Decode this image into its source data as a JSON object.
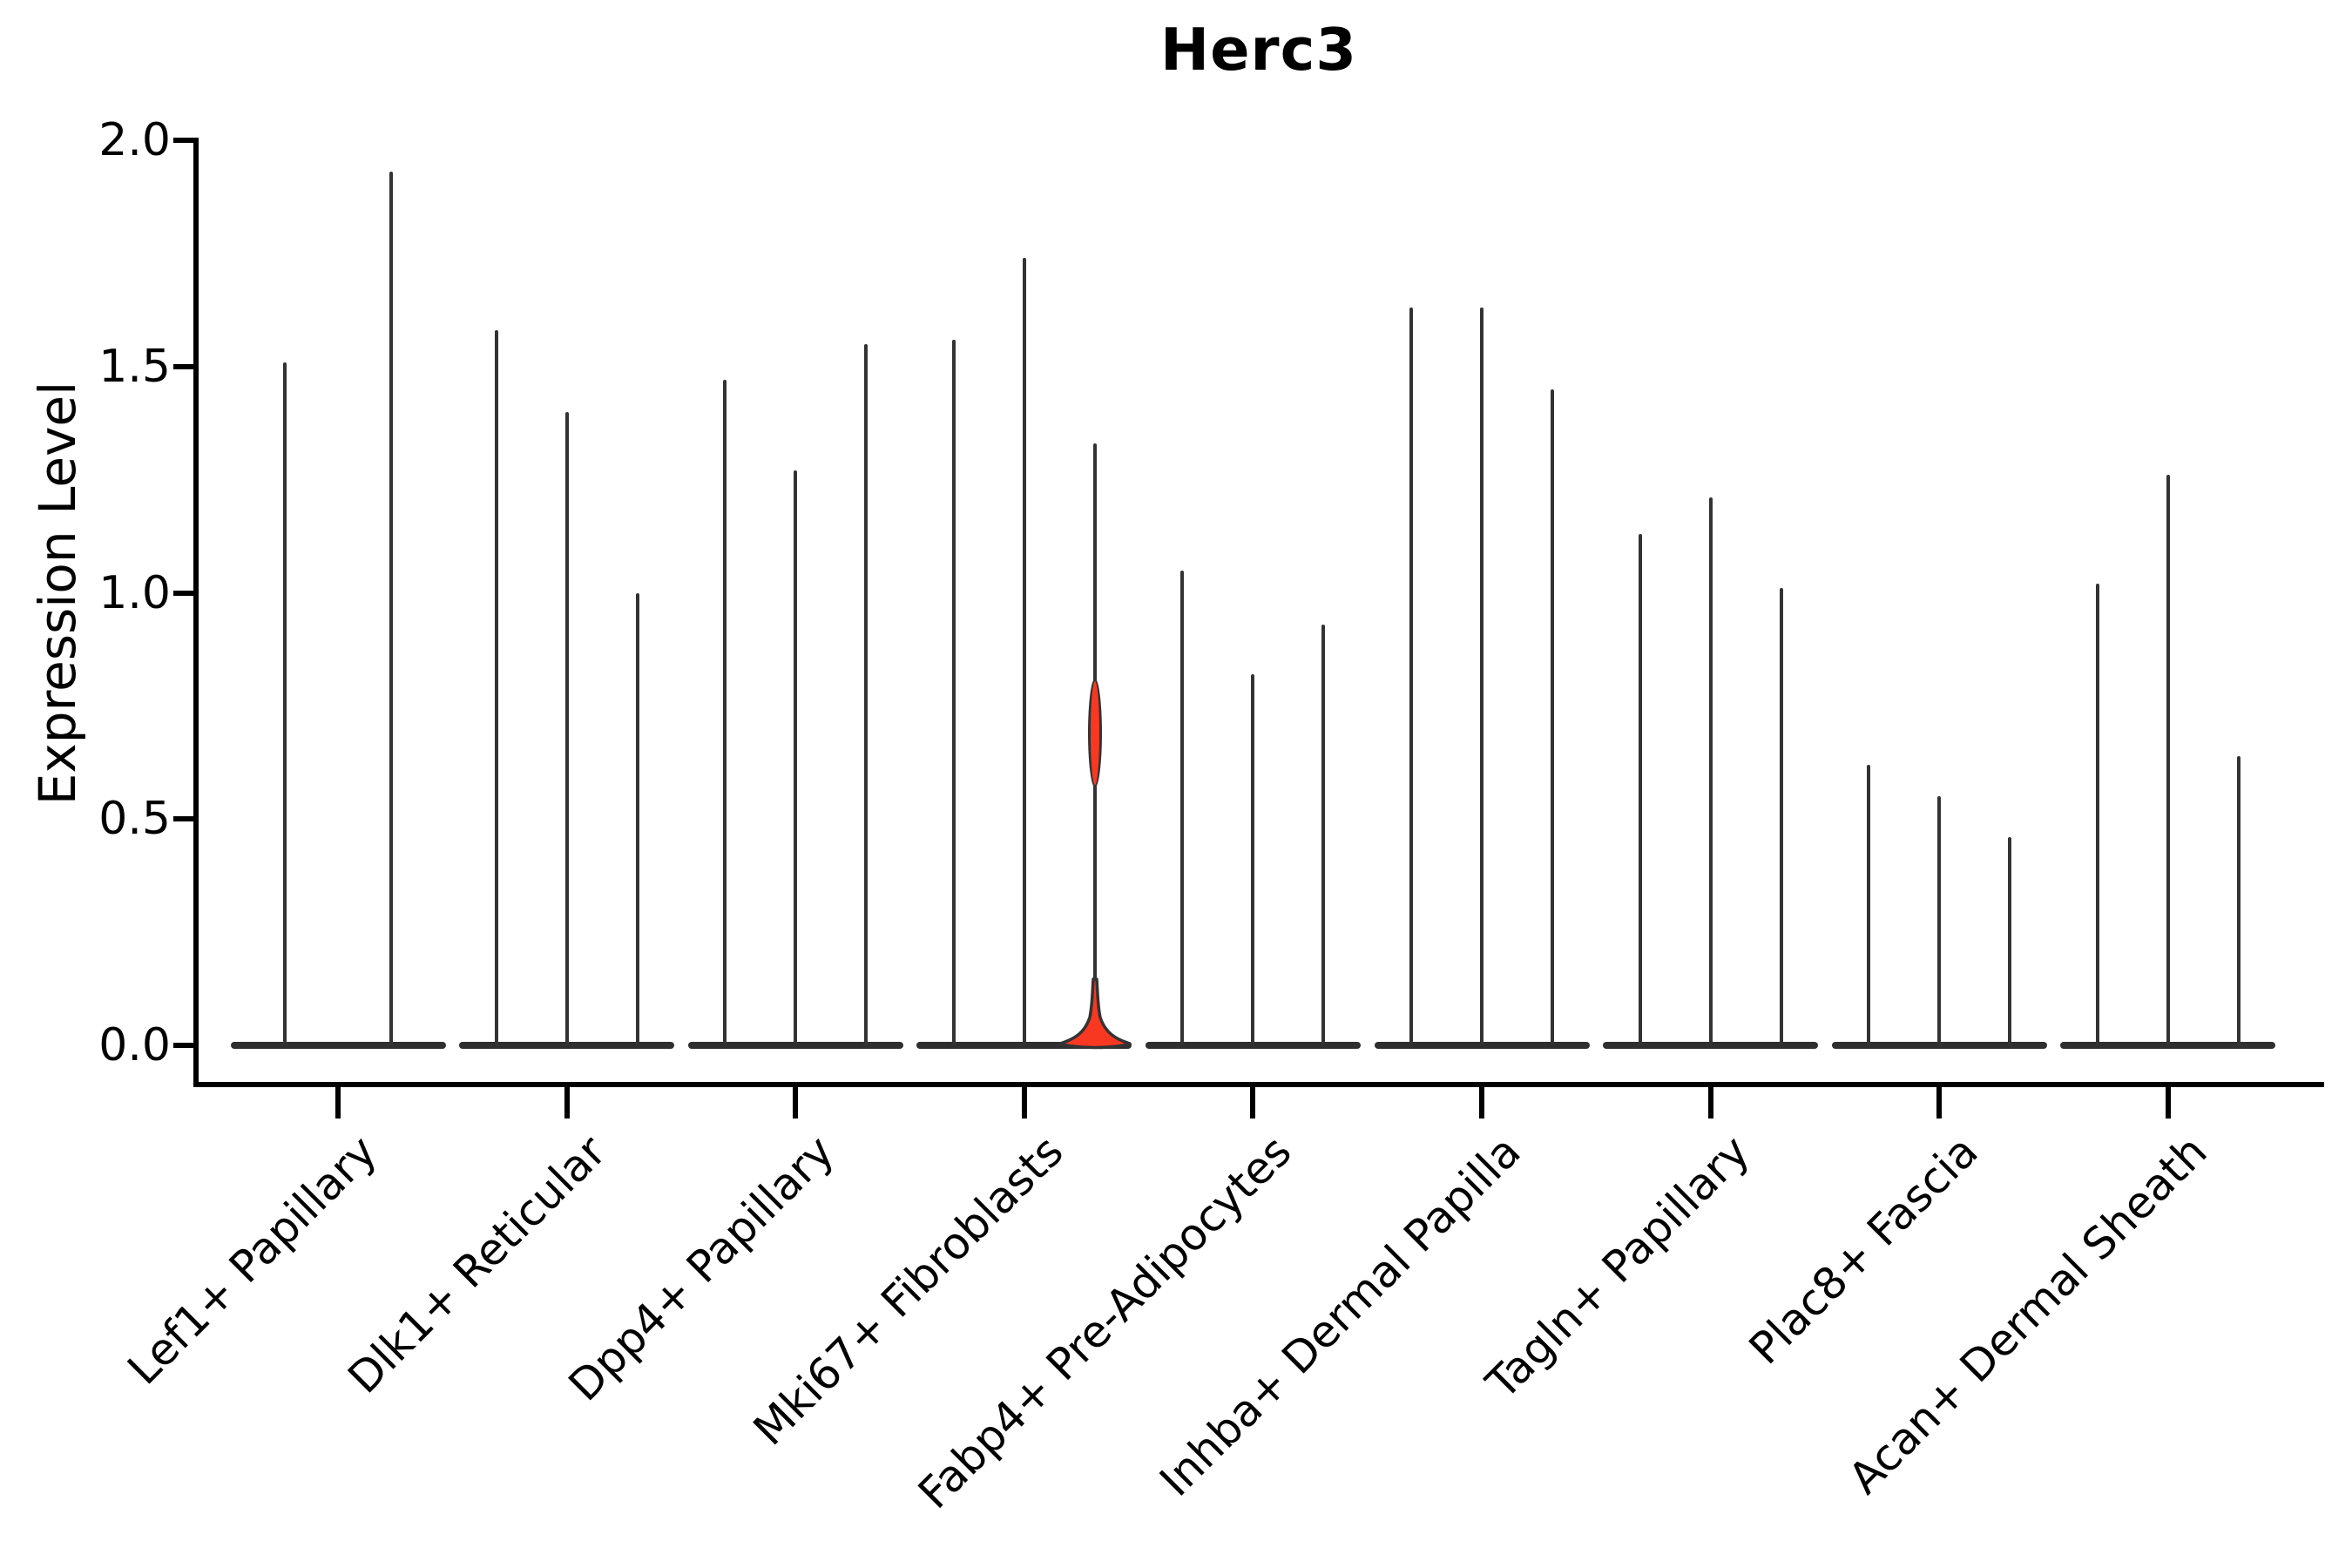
{
  "title": "Herc3",
  "y_axis": {
    "label": "Expression Level",
    "ticks": [
      "2.0",
      "1.5",
      "1.0",
      "0.5",
      "0.0"
    ],
    "tick_values": [
      2.0,
      1.5,
      1.0,
      0.5,
      0.0
    ]
  },
  "x_axis": {
    "categories": [
      "Lef1+ Papillary",
      "Dlk1+ Reticular",
      "Dpp4+ Papillary",
      "Mki67+ Fibroblasts",
      "Fabp4+ Pre-Adipocytes",
      "Inhba+ Dermal Papilla",
      "Tagln+ Papillary",
      "Plac8+ Fascia",
      "Acan+ Dermal Sheath"
    ]
  },
  "chart_data": {
    "type": "violin",
    "title": "Herc3",
    "xlabel": "",
    "ylabel": "Expression Level",
    "ylim": [
      0.0,
      2.0
    ],
    "yticks": [
      0.0,
      0.5,
      1.0,
      1.5,
      2.0
    ],
    "grid": false,
    "legend": "none",
    "categories": [
      "Lef1+ Papillary",
      "Dlk1+ Reticular",
      "Dpp4+ Papillary",
      "Mki67+ Fibroblasts",
      "Fabp4+ Pre-Adipocytes",
      "Inhba+ Dermal Papilla",
      "Tagln+ Papillary",
      "Plac8+ Fascia",
      "Acan+ Dermal Sheath"
    ],
    "groups": [
      {
        "category": "Lef1+ Papillary",
        "violins": [
          {
            "max": 1.51
          },
          {
            "max": 1.93
          }
        ]
      },
      {
        "category": "Dlk1+ Reticular",
        "violins": [
          {
            "max": 1.58
          },
          {
            "max": 1.4
          },
          {
            "max": 1.0
          }
        ]
      },
      {
        "category": "Dpp4+ Papillary",
        "violins": [
          {
            "max": 1.47
          },
          {
            "max": 1.27
          },
          {
            "max": 1.55
          }
        ]
      },
      {
        "category": "Mki67+ Fibroblasts",
        "violins": [
          {
            "max": 1.56
          },
          {
            "max": 1.74
          },
          {
            "max": 1.33,
            "highlighted": true,
            "fill": "#f93822",
            "bulge_center": 0.69,
            "bulge_span": 0.24
          }
        ]
      },
      {
        "category": "Fabp4+ Pre-Adipocytes",
        "violins": [
          {
            "max": 1.05
          },
          {
            "max": 0.82
          },
          {
            "max": 0.93
          }
        ]
      },
      {
        "category": "Inhba+ Dermal Papilla",
        "violins": [
          {
            "max": 1.63
          },
          {
            "max": 1.63
          },
          {
            "max": 1.45
          }
        ]
      },
      {
        "category": "Tagln+ Papillary",
        "violins": [
          {
            "max": 1.13
          },
          {
            "max": 1.21
          },
          {
            "max": 1.01
          }
        ]
      },
      {
        "category": "Plac8+ Fascia",
        "violins": [
          {
            "max": 0.62
          },
          {
            "max": 0.55
          },
          {
            "max": 0.46
          }
        ]
      },
      {
        "category": "Acan+ Dermal Sheath",
        "violins": [
          {
            "max": 1.02
          },
          {
            "max": 1.26
          },
          {
            "max": 0.64
          }
        ]
      }
    ]
  },
  "colors": {
    "background": "#ffffff",
    "ink": "#000000",
    "violin_stroke": "#333333",
    "highlight_fill": "#f93822"
  }
}
